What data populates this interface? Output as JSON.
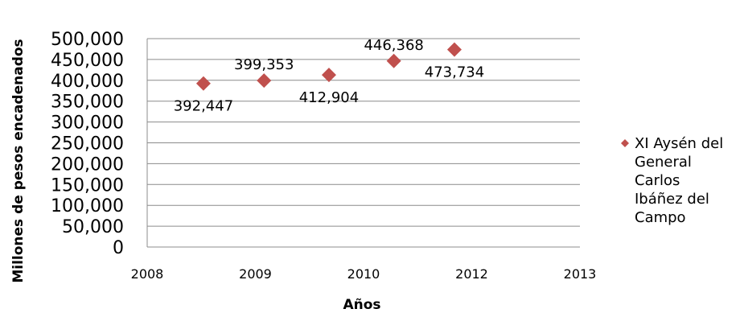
{
  "chart_data": {
    "type": "scatter",
    "title": "",
    "xlabel": "Años",
    "ylabel": "Millones de pesos encadenados",
    "xlim": [
      2008,
      2013
    ],
    "ylim": [
      0,
      500000
    ],
    "x_ticks": [
      "2008",
      "2009",
      "2010",
      "2012",
      "2013"
    ],
    "y_ticks": [
      "0",
      "50,000",
      "100,000",
      "150,000",
      "200,000",
      "250,000",
      "300,000",
      "350,000",
      "400,000",
      "450,000",
      "500,000"
    ],
    "grid": true,
    "legend_position": "right",
    "series": [
      {
        "name": "XI Aysén del General Carlos Ibáñez del Campo",
        "legend_lines": [
          "XI Aysén del",
          "General",
          "Carlos",
          "Ibáñez del",
          "Campo"
        ],
        "color": "#c0504d",
        "marker": "diamond",
        "x": [
          2008.65,
          2009.35,
          2010.1,
          2010.85,
          2011.55
        ],
        "y": [
          392447,
          399353,
          412904,
          446368,
          473734
        ],
        "labels": [
          "392,447",
          "399,353",
          "412,904",
          "446,368",
          "473,734"
        ],
        "label_positions": [
          "below",
          "above",
          "below",
          "above",
          "below"
        ]
      }
    ]
  }
}
